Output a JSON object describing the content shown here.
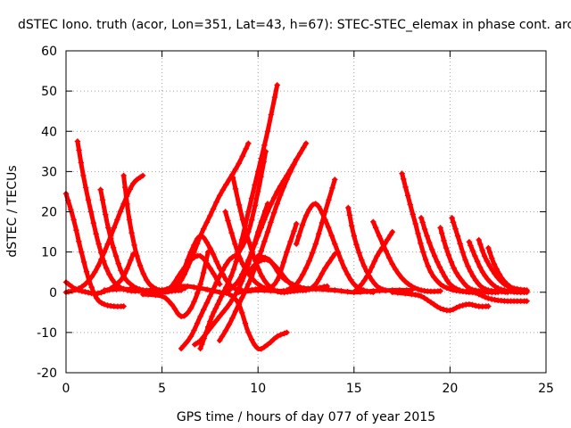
{
  "chart_data": {
    "type": "scatter",
    "title": "dSTEC Iono. truth (acor, Lon=351, Lat=43, h=67): STEC-STEC_elemax in phase cont. arc",
    "xlabel": "GPS time / hours of day 077 of year 2015",
    "ylabel": "dSTEC  / TECUs",
    "xlim": [
      0,
      25
    ],
    "ylim": [
      -20,
      60
    ],
    "x_ticks": [
      0,
      5,
      10,
      15,
      20,
      25
    ],
    "y_ticks": [
      -20,
      -10,
      0,
      10,
      20,
      30,
      40,
      50,
      60
    ],
    "grid": true,
    "legend": "none",
    "marker": "+",
    "color": "#ff0000",
    "series": [
      {
        "x": [
          0.0,
          0.4,
          0.8,
          1.2,
          1.6,
          2.0,
          2.5,
          3.0
        ],
        "y": [
          24.5,
          18.0,
          10.0,
          3.0,
          -1.5,
          -3.0,
          -3.5,
          -3.5
        ]
      },
      {
        "x": [
          0.0,
          0.5,
          1.0,
          1.5,
          2.0,
          2.5,
          3.0,
          3.5
        ],
        "y": [
          2.5,
          0.8,
          0.1,
          -0.3,
          0.2,
          1.5,
          4.0,
          9.5
        ]
      },
      {
        "x": [
          0.0,
          0.5,
          1.0,
          1.5,
          2.0,
          2.5,
          3.0,
          3.5,
          4.0
        ],
        "y": [
          0.0,
          0.6,
          2.0,
          5.0,
          10.0,
          16.0,
          22.0,
          27.0,
          29.0
        ]
      },
      {
        "x": [
          0.6,
          0.9,
          1.3,
          1.7,
          2.1,
          2.6,
          3.2,
          3.8,
          4.4,
          5.0
        ],
        "y": [
          37.5,
          29.0,
          20.0,
          12.0,
          6.0,
          2.0,
          0.5,
          0.3,
          0.5,
          0.5
        ]
      },
      {
        "x": [
          1.8,
          2.2,
          2.6,
          3.0,
          3.5,
          4.0,
          4.5,
          5.0,
          5.5,
          6.0
        ],
        "y": [
          25.5,
          16.0,
          9.0,
          4.0,
          1.5,
          0.5,
          0.0,
          0.0,
          0.3,
          0.5
        ]
      },
      {
        "x": [
          3.0,
          3.3,
          3.7,
          4.2,
          4.7,
          5.2,
          5.7,
          6.2
        ],
        "y": [
          29.0,
          18.0,
          9.0,
          3.0,
          0.8,
          0.3,
          0.5,
          1.0
        ]
      },
      {
        "x": [
          2.0,
          3.0,
          4.0,
          5.0,
          5.5,
          6.0,
          6.5,
          7.0,
          7.5,
          8.0
        ],
        "y": [
          0.5,
          0.8,
          0.5,
          0.0,
          1.5,
          5.0,
          8.0,
          9.0,
          6.0,
          2.0
        ]
      },
      {
        "x": [
          4.0,
          5.0,
          5.5,
          6.0,
          6.5,
          7.0,
          7.4
        ],
        "y": [
          -0.5,
          -1.0,
          -3.0,
          -6.0,
          -4.0,
          2.0,
          10.0
        ]
      },
      {
        "x": [
          5.5,
          6.0,
          6.5,
          7.0,
          7.5,
          8.0,
          8.5,
          9.0,
          9.5,
          10.0
        ],
        "y": [
          1.0,
          4.0,
          10.0,
          14.0,
          11.0,
          6.0,
          2.0,
          0.5,
          0.5,
          0.8
        ]
      },
      {
        "x": [
          4.8,
          5.5,
          6.0,
          6.5,
          7.0,
          7.5,
          8.0,
          8.5,
          9.0,
          9.5
        ],
        "y": [
          0.0,
          0.5,
          3.0,
          8.0,
          14.0,
          19.0,
          24.0,
          28.0,
          32.0,
          37.0
        ]
      },
      {
        "x": [
          5.0,
          6.0,
          7.0,
          8.0,
          8.5,
          9.0,
          9.5,
          10.0,
          10.5,
          11.0,
          11.5
        ],
        "y": [
          0.5,
          1.5,
          1.0,
          0.0,
          -0.5,
          -3.0,
          -10.0,
          -14.0,
          -13.0,
          -11.0,
          -10.0
        ]
      },
      {
        "x": [
          6.0,
          6.5,
          7.0,
          7.5,
          8.0,
          8.5,
          9.0,
          9.5,
          10.0,
          10.4
        ],
        "y": [
          -14.0,
          -11.0,
          -6.0,
          -1.0,
          4.0,
          8.0,
          10.0,
          15.0,
          25.0,
          35.0
        ]
      },
      {
        "x": [
          6.7,
          7.0,
          7.5,
          8.0,
          8.5,
          9.0,
          9.5,
          10.0,
          10.5
        ],
        "y": [
          -13.0,
          -12.0,
          -9.0,
          -6.0,
          -3.0,
          1.0,
          7.0,
          15.0,
          22.0
        ]
      },
      {
        "x": [
          7.0,
          7.3,
          7.6,
          7.9,
          8.2,
          8.6,
          9.0,
          9.5,
          10.0,
          10.5,
          11.0
        ],
        "y": [
          -14.0,
          -10.0,
          -6.0,
          -3.0,
          0.0,
          4.0,
          10.0,
          20.0,
          30.0,
          40.0,
          51.5
        ]
      },
      {
        "x": [
          8.0,
          8.5,
          9.0,
          9.5,
          10.0,
          10.5,
          11.0,
          11.5,
          12.0
        ],
        "y": [
          -12.0,
          -8.0,
          -3.0,
          2.0,
          8.0,
          15.0,
          22.0,
          28.0,
          33.0
        ]
      },
      {
        "x": [
          8.3,
          8.8,
          9.2,
          9.6,
          10.0,
          10.5,
          11.0,
          11.5,
          12.0
        ],
        "y": [
          20.0,
          12.0,
          7.0,
          4.0,
          2.0,
          1.0,
          3.0,
          10.0,
          17.0
        ]
      },
      {
        "x": [
          8.5,
          9.0,
          9.5,
          10.0,
          10.5,
          11.0,
          11.5,
          12.0,
          12.5
        ],
        "y": [
          0.5,
          3.0,
          8.0,
          14.0,
          20.0,
          25.0,
          29.0,
          33.0,
          37.0
        ]
      },
      {
        "x": [
          8.7,
          9.2,
          9.7,
          10.2,
          10.7,
          11.2,
          11.7,
          12.2
        ],
        "y": [
          28.5,
          18.0,
          10.0,
          4.0,
          1.0,
          0.0,
          0.2,
          0.5
        ]
      },
      {
        "x": [
          9.5,
          10.0,
          10.5,
          11.0,
          11.5,
          12.0,
          12.5,
          13.0,
          13.5,
          14.0
        ],
        "y": [
          5.0,
          7.5,
          8.0,
          6.0,
          3.0,
          1.0,
          0.5,
          2.0,
          6.0,
          9.5
        ]
      },
      {
        "x": [
          10.0,
          10.6,
          11.2,
          11.8,
          12.4,
          13.0,
          13.6
        ],
        "y": [
          9.0,
          8.0,
          4.0,
          2.0,
          1.0,
          1.0,
          1.5
        ]
      },
      {
        "x": [
          11.5,
          12.0,
          12.5,
          13.0,
          13.5,
          14.0
        ],
        "y": [
          0.5,
          2.0,
          6.0,
          12.0,
          20.0,
          28.0
        ]
      },
      {
        "x": [
          12.0,
          12.5,
          13.0,
          13.5,
          14.0,
          14.5,
          15.0,
          15.5,
          16.0
        ],
        "y": [
          12.0,
          19.0,
          22.0,
          18.0,
          12.0,
          6.0,
          2.0,
          0.5,
          0.0
        ]
      },
      {
        "x": [
          9.0,
          10.0,
          11.0,
          12.0,
          13.0,
          14.0,
          15.0,
          16.0,
          17.0,
          18.0
        ],
        "y": [
          0.0,
          0.5,
          0.3,
          0.5,
          0.8,
          0.5,
          0.0,
          0.3,
          0.5,
          0.5
        ]
      },
      {
        "x": [
          14.7,
          15.0,
          15.4,
          15.8,
          16.2,
          16.6
        ],
        "y": [
          21.0,
          14.0,
          8.0,
          4.0,
          1.5,
          0.5
        ]
      },
      {
        "x": [
          15.0,
          15.4,
          15.8,
          16.2,
          16.6,
          17.0
        ],
        "y": [
          0.0,
          2.0,
          5.0,
          9.0,
          12.0,
          15.0
        ]
      },
      {
        "x": [
          16.0,
          16.5,
          17.0,
          17.5,
          18.0,
          18.5,
          19.0,
          19.5
        ],
        "y": [
          17.5,
          12.0,
          7.0,
          3.5,
          1.5,
          0.5,
          0.2,
          0.3
        ]
      },
      {
        "x": [
          17.5,
          17.8,
          18.2,
          18.6,
          19.0,
          19.5,
          20.0,
          20.5,
          21.0
        ],
        "y": [
          29.5,
          24.0,
          17.0,
          10.0,
          5.0,
          2.0,
          0.8,
          0.3,
          0.2
        ]
      },
      {
        "x": [
          17.0,
          18.0,
          18.5,
          19.0,
          19.5,
          20.0,
          20.5,
          21.0,
          21.5,
          22.0
        ],
        "y": [
          0.0,
          -0.5,
          -1.0,
          -2.5,
          -4.0,
          -4.5,
          -3.5,
          -3.0,
          -3.5,
          -3.5
        ]
      },
      {
        "x": [
          18.5,
          18.8,
          19.2,
          19.6,
          20.0,
          20.5,
          21.0,
          21.5
        ],
        "y": [
          18.5,
          14.0,
          9.0,
          5.0,
          2.0,
          0.5,
          0.0,
          0.0
        ]
      },
      {
        "x": [
          19.5,
          19.8,
          20.2,
          20.6,
          21.0,
          21.5,
          22.0,
          22.5
        ],
        "y": [
          16.0,
          11.0,
          6.0,
          3.0,
          1.0,
          0.3,
          0.0,
          0.0
        ]
      },
      {
        "x": [
          20.1,
          20.4,
          20.8,
          21.2,
          21.6,
          22.0,
          22.5,
          23.0
        ],
        "y": [
          18.5,
          14.0,
          8.0,
          4.0,
          1.5,
          0.5,
          0.2,
          0.0
        ]
      },
      {
        "x": [
          21.0,
          21.3,
          21.7,
          22.1,
          22.5,
          23.0,
          23.5,
          24.0
        ],
        "y": [
          12.5,
          9.0,
          5.0,
          2.5,
          1.0,
          0.3,
          0.0,
          0.0
        ]
      },
      {
        "x": [
          21.5,
          21.8,
          22.2,
          22.6,
          23.0,
          23.5,
          24.0
        ],
        "y": [
          13.0,
          9.0,
          5.5,
          3.0,
          1.5,
          0.8,
          0.5
        ]
      },
      {
        "x": [
          22.0,
          22.3,
          22.7,
          23.1,
          23.5,
          24.0
        ],
        "y": [
          11.0,
          7.0,
          3.5,
          1.5,
          0.5,
          0.2
        ]
      },
      {
        "x": [
          21.0,
          21.5,
          22.0,
          22.5,
          23.0,
          23.5,
          24.0
        ],
        "y": [
          0.5,
          -0.5,
          -1.5,
          -2.0,
          -2.2,
          -2.2,
          -2.2
        ]
      }
    ]
  }
}
